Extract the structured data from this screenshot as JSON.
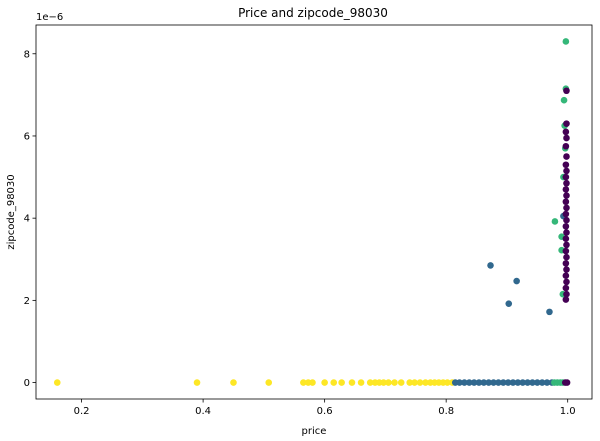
{
  "chart_data": {
    "type": "scatter",
    "title": "Price and zipcode_98030",
    "xlabel": "price",
    "ylabel": "zipcode_98030",
    "y_offset_label": "1e−6",
    "xlim": [
      0.125,
      1.04
    ],
    "ylim": [
      -0.4,
      8.7
    ],
    "x_ticks": [
      {
        "value": 0.2,
        "label": "0.2"
      },
      {
        "value": 0.4,
        "label": "0.4"
      },
      {
        "value": 0.6,
        "label": "0.6"
      },
      {
        "value": 0.8,
        "label": "0.8"
      },
      {
        "value": 1.0,
        "label": "1.0"
      }
    ],
    "y_ticks": [
      {
        "value": 0,
        "label": "0"
      },
      {
        "value": 2,
        "label": "2"
      },
      {
        "value": 4,
        "label": "4"
      },
      {
        "value": 6,
        "label": "6"
      },
      {
        "value": 8,
        "label": "8"
      }
    ],
    "grid": false,
    "colors": {
      "yellow": "#fde725",
      "blue": "#31688e",
      "green": "#35b779",
      "purple": "#440154"
    },
    "series": [
      {
        "color": "#fde725",
        "points": [
          [
            0.16,
            0
          ],
          [
            0.39,
            0
          ],
          [
            0.45,
            0
          ],
          [
            0.508,
            0
          ],
          [
            0.565,
            0
          ],
          [
            0.573,
            0
          ],
          [
            0.58,
            0
          ],
          [
            0.6,
            0
          ],
          [
            0.615,
            0
          ],
          [
            0.628,
            0
          ],
          [
            0.645,
            0
          ],
          [
            0.66,
            0
          ],
          [
            0.675,
            0
          ],
          [
            0.683,
            0
          ],
          [
            0.69,
            0
          ],
          [
            0.697,
            0
          ],
          [
            0.705,
            0
          ],
          [
            0.715,
            0
          ],
          [
            0.726,
            0
          ],
          [
            0.74,
            0
          ],
          [
            0.748,
            0
          ],
          [
            0.757,
            0
          ],
          [
            0.766,
            0
          ],
          [
            0.774,
            0
          ],
          [
            0.781,
            0
          ],
          [
            0.788,
            0
          ],
          [
            0.795,
            0
          ],
          [
            0.802,
            0
          ],
          [
            0.81,
            0
          ]
        ]
      },
      {
        "color": "#31688e",
        "points": [
          [
            0.815,
            0
          ],
          [
            0.822,
            0
          ],
          [
            0.83,
            0
          ],
          [
            0.838,
            0
          ],
          [
            0.846,
            0
          ],
          [
            0.854,
            0
          ],
          [
            0.862,
            0
          ],
          [
            0.87,
            0
          ],
          [
            0.878,
            0
          ],
          [
            0.886,
            0
          ],
          [
            0.894,
            0
          ],
          [
            0.902,
            0
          ],
          [
            0.91,
            0
          ],
          [
            0.918,
            0
          ],
          [
            0.926,
            0
          ],
          [
            0.934,
            0
          ],
          [
            0.942,
            0
          ],
          [
            0.95,
            0
          ],
          [
            0.958,
            0
          ],
          [
            0.966,
            0
          ],
          [
            0.974,
            0
          ],
          [
            0.873,
            2.85
          ],
          [
            0.903,
            1.92
          ],
          [
            0.916,
            2.47
          ],
          [
            0.97,
            1.72
          ],
          [
            0.993,
            4.05
          ]
        ]
      },
      {
        "color": "#35b779",
        "points": [
          [
            0.978,
            0
          ],
          [
            0.983,
            0
          ],
          [
            0.988,
            0
          ],
          [
            0.992,
            0
          ],
          [
            0.979,
            3.92
          ],
          [
            0.99,
            3.22
          ],
          [
            0.99,
            3.55
          ],
          [
            0.992,
            2.15
          ],
          [
            0.993,
            5.0
          ],
          [
            0.994,
            6.87
          ],
          [
            0.995,
            6.25
          ],
          [
            0.996,
            5.7
          ],
          [
            0.997,
            7.15
          ],
          [
            0.997,
            8.3
          ]
        ]
      },
      {
        "color": "#440154",
        "points": [
          [
            0.996,
            0
          ],
          [
            0.999,
            0
          ],
          [
            0.997,
            2.02
          ],
          [
            0.998,
            2.15
          ],
          [
            0.997,
            2.3
          ],
          [
            0.998,
            2.45
          ],
          [
            0.997,
            2.6
          ],
          [
            0.998,
            2.75
          ],
          [
            0.997,
            2.9
          ],
          [
            0.998,
            3.05
          ],
          [
            0.997,
            3.2
          ],
          [
            0.998,
            3.35
          ],
          [
            0.997,
            3.5
          ],
          [
            0.998,
            3.65
          ],
          [
            0.997,
            3.8
          ],
          [
            0.998,
            3.95
          ],
          [
            0.997,
            4.1
          ],
          [
            0.998,
            4.25
          ],
          [
            0.997,
            4.4
          ],
          [
            0.998,
            4.55
          ],
          [
            0.997,
            4.7
          ],
          [
            0.998,
            4.85
          ],
          [
            0.997,
            5.0
          ],
          [
            0.998,
            5.15
          ],
          [
            0.997,
            5.3
          ],
          [
            0.998,
            5.5
          ],
          [
            0.997,
            5.75
          ],
          [
            0.998,
            5.95
          ],
          [
            0.997,
            6.1
          ],
          [
            0.998,
            6.3
          ],
          [
            0.998,
            7.1
          ]
        ]
      }
    ]
  }
}
